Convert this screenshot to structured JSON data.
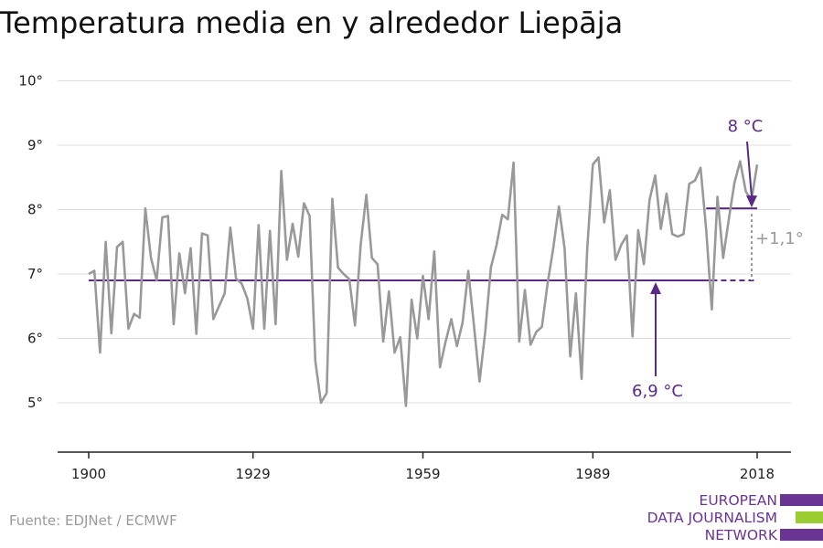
{
  "title": "Temperatura media en y alrededor Liepāja",
  "source": "Fuente: EDJNet / ECMWF",
  "logo": {
    "lines": [
      "EUROPEAN",
      "DATA JOURNALISM",
      "NETWORK"
    ],
    "colors": [
      "#6a3495",
      "#9acd32",
      "#6a3495"
    ]
  },
  "chart_data": {
    "type": "line",
    "title": "Temperatura media en y alrededor Liepāja",
    "xlabel": "",
    "ylabel": "",
    "xlim": [
      1900,
      2018
    ],
    "ylim": [
      4.3,
      10
    ],
    "x_ticks": [
      1900,
      1929,
      1959,
      1989,
      2018
    ],
    "x_tick_labels": [
      "1900",
      "1929",
      "1959",
      "1989",
      "2018"
    ],
    "y_ticks": [
      5,
      6,
      7,
      8,
      9,
      10
    ],
    "y_tick_labels": [
      "5°",
      "6°",
      "7°",
      "8°",
      "9°",
      "10°"
    ],
    "grid": true,
    "series_color": "#999999",
    "accent_color": "#5b2a86",
    "series": [
      {
        "name": "",
        "x": [
          1900,
          1901,
          1902,
          1903,
          1904,
          1905,
          1906,
          1907,
          1908,
          1909,
          1910,
          1911,
          1912,
          1913,
          1914,
          1915,
          1916,
          1917,
          1918,
          1919,
          1920,
          1921,
          1922,
          1923,
          1924,
          1925,
          1926,
          1927,
          1928,
          1929,
          1930,
          1931,
          1932,
          1933,
          1934,
          1935,
          1936,
          1937,
          1938,
          1939,
          1940,
          1941,
          1942,
          1943,
          1944,
          1945,
          1946,
          1947,
          1948,
          1949,
          1950,
          1951,
          1952,
          1953,
          1954,
          1955,
          1956,
          1957,
          1958,
          1959,
          1960,
          1961,
          1962,
          1963,
          1964,
          1965,
          1966,
          1967,
          1968,
          1969,
          1970,
          1971,
          1972,
          1973,
          1974,
          1975,
          1976,
          1977,
          1978,
          1979,
          1980,
          1981,
          1982,
          1983,
          1984,
          1985,
          1986,
          1987,
          1988,
          1989,
          1990,
          1991,
          1992,
          1993,
          1994,
          1995,
          1996,
          1997,
          1998,
          1999,
          2000,
          2001,
          2002,
          2003,
          2004,
          2005,
          2006,
          2007,
          2008,
          2009,
          2010,
          2011,
          2012,
          2013,
          2014,
          2015,
          2016,
          2017,
          2018
        ],
        "values": [
          7.0,
          7.05,
          5.78,
          7.5,
          6.08,
          7.42,
          7.5,
          6.15,
          6.38,
          6.32,
          8.02,
          7.25,
          6.9,
          7.88,
          7.9,
          6.22,
          7.32,
          6.7,
          7.4,
          6.07,
          7.63,
          7.6,
          6.3,
          6.5,
          6.7,
          7.72,
          6.93,
          6.85,
          6.62,
          6.15,
          7.76,
          6.15,
          7.67,
          6.22,
          8.6,
          7.22,
          7.78,
          7.27,
          8.1,
          7.9,
          5.65,
          5.0,
          5.15,
          8.17,
          7.1,
          7.0,
          6.92,
          6.2,
          7.45,
          8.23,
          7.25,
          7.15,
          5.95,
          6.73,
          5.78,
          6.02,
          4.95,
          6.6,
          6.0,
          6.97,
          6.3,
          7.35,
          5.55,
          5.95,
          6.3,
          5.88,
          6.25,
          7.05,
          6.2,
          5.33,
          6.1,
          7.1,
          7.45,
          7.92,
          7.85,
          8.73,
          5.95,
          6.75,
          5.9,
          6.1,
          6.18,
          6.85,
          7.4,
          8.05,
          7.4,
          5.72,
          6.7,
          5.37,
          7.4,
          8.7,
          8.81,
          7.8,
          8.3,
          7.22,
          7.45,
          7.6,
          6.03,
          7.68,
          7.15,
          8.15,
          8.53,
          7.7,
          8.25,
          7.62,
          7.58,
          7.62,
          8.4,
          8.45,
          8.65,
          7.7,
          6.45,
          8.2,
          7.25,
          7.85,
          8.42,
          8.75,
          8.28,
          8.15,
          8.7
        ]
      }
    ],
    "reference_lines": [
      {
        "label": "6,9 °C",
        "y": 6.9,
        "from": 1900,
        "to": 2018
      },
      {
        "label": "8 °C",
        "y": 8.02,
        "from": 2009,
        "to": 2018
      }
    ],
    "change_annotation": "+1,1°"
  }
}
